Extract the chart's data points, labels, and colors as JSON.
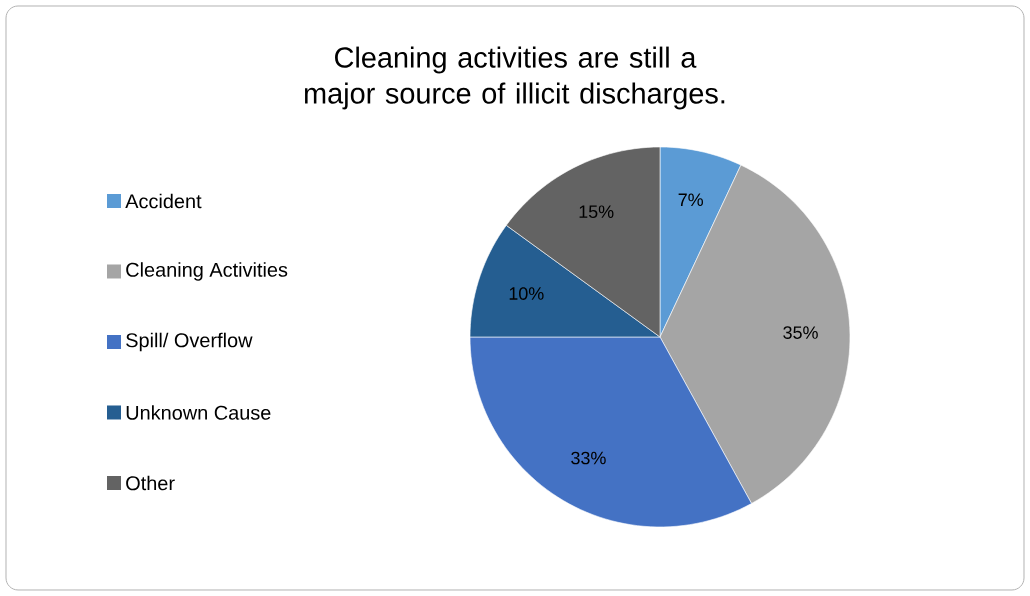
{
  "chart_data": {
    "type": "pie",
    "title": "Cleaning activities are still a major source of illicit discharges.",
    "categories": [
      "Accident",
      "Cleaning Activities",
      "Spill/ Overflow",
      "Unknown Cause",
      "Other"
    ],
    "values": [
      7,
      35,
      33,
      10,
      15
    ],
    "value_labels": [
      "7%",
      "35%",
      "33%",
      "10%",
      "15%"
    ],
    "colors": [
      "#5b9bd5",
      "#a5a5a5",
      "#4472c4",
      "#255e91",
      "#636363"
    ],
    "legend": "left"
  }
}
